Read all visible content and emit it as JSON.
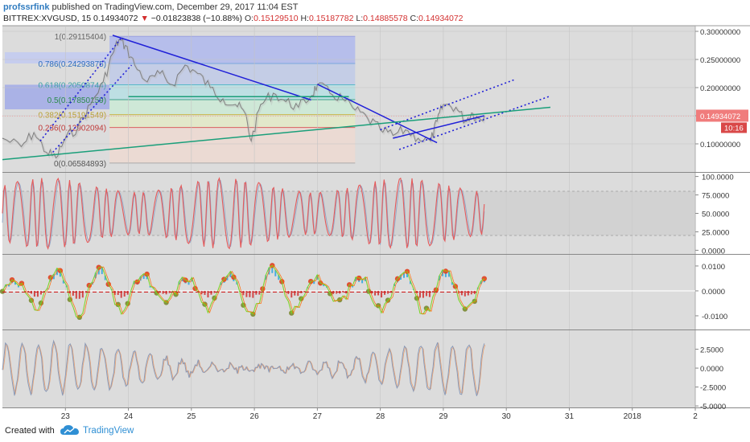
{
  "header": {
    "author": "profssrfink",
    "published_text": "published on TradingView.com, December 29, 2017 11:04 EST",
    "symbol": "BITTREX:XVGUSD, 15",
    "price": "0.14934072",
    "change": "−0.01823838 (−10.88%)",
    "o_label": "O:",
    "o_value": "0.15129510",
    "h_label": "H:",
    "h_value": "0.15187782",
    "l_label": "L:",
    "l_value": "0.14885578",
    "c_label": "C:",
    "c_value": "0.14934072"
  },
  "price_tag": "0.14934072",
  "time_tag": "10:16",
  "footer": {
    "created_with": "Created with",
    "brand": "TradingView"
  },
  "colors": {
    "pane_bg": "#dcdcdc",
    "grid": "#c4c4c4",
    "price_line": "#555555",
    "trendline_blue": "#2020d8",
    "trendline_green": "#1a9f7a",
    "stoch_line": "#e65a5a",
    "stoch_line2": "#8fa6c8",
    "osc_line": "#8a9ab8",
    "price_tag_bg": "#f07c7c",
    "red": "#d32f2f"
  },
  "chart_data": [
    {
      "type": "line",
      "pane": "price",
      "y_ticks": [
        "0.30000000",
        "0.25000000",
        "0.20000000",
        "0.15000000",
        "0.10000000"
      ],
      "y_tick_values": [
        0.3,
        0.25,
        0.2,
        0.15,
        0.1
      ],
      "ylim": [
        0.05,
        0.31
      ],
      "x_ticks": [
        "23",
        "24",
        "25",
        "26",
        "27",
        "28",
        "29",
        "30",
        "31",
        "2018",
        "2"
      ],
      "x_tick_values": [
        23,
        24,
        25,
        26,
        27,
        28,
        29,
        30,
        31,
        32,
        33
      ],
      "xlim": [
        22.0,
        33.0
      ],
      "fib_levels": [
        {
          "label": "1(0.29115404)",
          "ratio": 1,
          "value": 0.29115404
        },
        {
          "label": "0.786(0.24293875)",
          "ratio": 0.786,
          "value": 0.24293875
        },
        {
          "label": "0.618(0.20508744)",
          "ratio": 0.618,
          "value": 0.20508744
        },
        {
          "label": "0.5(0.17850159)",
          "ratio": 0.5,
          "value": 0.17850159
        },
        {
          "label": "0.382(0.15191549)",
          "ratio": 0.382,
          "value": 0.15191549
        },
        {
          "label": "0.236(0.12902094)",
          "ratio": 0.236,
          "value": 0.12902094
        },
        {
          "label": "0(0.06584893)",
          "ratio": 0,
          "value": 0.06584893
        }
      ],
      "fib_x_range": [
        23.7,
        27.6
      ],
      "price_series": {
        "x": [
          22.0,
          22.3,
          22.5,
          22.7,
          22.85,
          23.0,
          23.2,
          23.4,
          23.6,
          23.75,
          23.85,
          23.95,
          24.1,
          24.3,
          24.5,
          24.7,
          24.9,
          25.1,
          25.3,
          25.5,
          25.7,
          25.85,
          25.95,
          26.1,
          26.3,
          26.5,
          26.7,
          26.9,
          27.0,
          27.2,
          27.4,
          27.6,
          27.8,
          28.0,
          28.2,
          28.4,
          28.6,
          28.8,
          28.9,
          29.0,
          29.2,
          29.35,
          29.45,
          29.55,
          29.65
        ],
        "y": [
          0.11,
          0.095,
          0.12,
          0.085,
          0.075,
          0.11,
          0.13,
          0.17,
          0.21,
          0.26,
          0.285,
          0.275,
          0.24,
          0.21,
          0.225,
          0.205,
          0.24,
          0.225,
          0.2,
          0.18,
          0.17,
          0.155,
          0.105,
          0.17,
          0.19,
          0.175,
          0.165,
          0.185,
          0.205,
          0.19,
          0.18,
          0.16,
          0.145,
          0.125,
          0.115,
          0.125,
          0.11,
          0.105,
          0.14,
          0.17,
          0.165,
          0.14,
          0.155,
          0.145,
          0.15
        ]
      },
      "trendlines": [
        {
          "color": "blue",
          "style": "solid",
          "points": [
            [
              23.75,
              0.293
            ],
            [
              26.9,
              0.178
            ]
          ]
        },
        {
          "color": "blue",
          "style": "solid",
          "points": [
            [
              27.0,
              0.206
            ],
            [
              28.9,
              0.102
            ]
          ]
        },
        {
          "color": "blue",
          "style": "dotted",
          "points": [
            [
              22.6,
              0.105
            ],
            [
              23.9,
              0.29
            ]
          ]
        },
        {
          "color": "blue",
          "style": "dotted",
          "points": [
            [
              22.8,
              0.085
            ],
            [
              24.05,
              0.24
            ]
          ]
        },
        {
          "color": "blue",
          "style": "dotted",
          "points": [
            [
              28.0,
              0.125
            ],
            [
              30.15,
              0.215
            ]
          ]
        },
        {
          "color": "blue",
          "style": "dotted",
          "points": [
            [
              28.3,
              0.09
            ],
            [
              30.7,
              0.185
            ]
          ]
        },
        {
          "color": "green",
          "style": "solid",
          "points": [
            [
              22.0,
              0.072
            ],
            [
              30.7,
              0.165
            ]
          ]
        },
        {
          "color": "green",
          "style": "solid",
          "points": [
            [
              24.0,
              0.184
            ],
            [
              27.5,
              0.184
            ]
          ]
        },
        {
          "color": "blue",
          "style": "solid",
          "points": [
            [
              28.2,
              0.11
            ],
            [
              29.65,
              0.15
            ]
          ]
        }
      ]
    },
    {
      "type": "line",
      "pane": "stochastic_rsi",
      "y_ticks": [
        "100.0000",
        "75.0000",
        "50.0000",
        "25.0000",
        "0.0000"
      ],
      "y_tick_values": [
        100,
        75,
        50,
        25,
        0
      ],
      "ylim": [
        -5,
        105
      ],
      "band": [
        20,
        80
      ],
      "x_range": [
        22.0,
        29.65
      ],
      "cycles": 38
    },
    {
      "type": "scatter",
      "pane": "momentum_histogram",
      "y_ticks": [
        "0.0100",
        "0.0000",
        "-0.0100"
      ],
      "y_tick_values": [
        0.01,
        0,
        -0.01
      ],
      "ylim": [
        -0.0155,
        0.0145
      ],
      "x_range": [
        22.0,
        29.65
      ]
    },
    {
      "type": "line",
      "pane": "oscillator",
      "y_ticks": [
        "2.5000",
        "0.0000",
        "-2.5000",
        "-5.0000"
      ],
      "y_tick_values": [
        2.5,
        0,
        -2.5,
        -5.0
      ],
      "ylim": [
        -5.2,
        5.0
      ],
      "x_range": [
        22.0,
        29.65
      ]
    }
  ]
}
